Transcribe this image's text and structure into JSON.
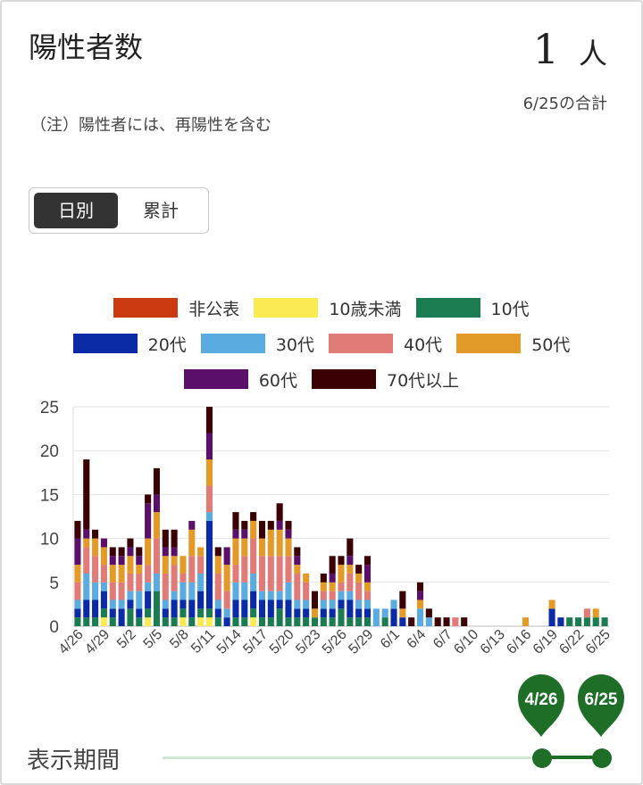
{
  "header": {
    "title": "陽性者数",
    "total_value": "1",
    "total_unit": "人",
    "total_date": "6/25の合計",
    "note": "（注）陽性者には、再陽性を含む"
  },
  "toggle": {
    "daily_label": "日別",
    "cumulative_label": "累計"
  },
  "slider": {
    "label": "表示期間",
    "start_label": "4/26",
    "end_label": "6/25",
    "accent": "#1e6e27"
  },
  "chart_data": {
    "type": "bar",
    "stacked": true,
    "ylim": [
      0,
      25
    ],
    "yticks": [
      0,
      5,
      10,
      15,
      20,
      25
    ],
    "grid": true,
    "legend_position": "top",
    "x_tick_labels": [
      "4/26",
      "4/29",
      "5/2",
      "5/5",
      "5/8",
      "5/11",
      "5/14",
      "5/17",
      "5/20",
      "5/23",
      "5/26",
      "5/29",
      "6/1",
      "6/4",
      "6/7",
      "6/10",
      "6/13",
      "6/16",
      "6/19",
      "6/22",
      "6/25"
    ],
    "tick_every": 3,
    "categories": [
      "4/26",
      "4/27",
      "4/28",
      "4/29",
      "4/30",
      "5/1",
      "5/2",
      "5/3",
      "5/4",
      "5/5",
      "5/6",
      "5/7",
      "5/8",
      "5/9",
      "5/10",
      "5/11",
      "5/12",
      "5/13",
      "5/14",
      "5/15",
      "5/16",
      "5/17",
      "5/18",
      "5/19",
      "5/20",
      "5/21",
      "5/22",
      "5/23",
      "5/24",
      "5/25",
      "5/26",
      "5/27",
      "5/28",
      "5/29",
      "5/30",
      "5/31",
      "6/1",
      "6/2",
      "6/3",
      "6/4",
      "6/5",
      "6/6",
      "6/7",
      "6/8",
      "6/9",
      "6/10",
      "6/11",
      "6/12",
      "6/13",
      "6/14",
      "6/15",
      "6/16",
      "6/17",
      "6/18",
      "6/19",
      "6/20",
      "6/21",
      "6/22",
      "6/23",
      "6/24",
      "6/25"
    ],
    "series": [
      {
        "name": "非公表",
        "color": "#cc3a12",
        "values": [
          0,
          0,
          0,
          0,
          0,
          0,
          0,
          0,
          0,
          0,
          0,
          0,
          0,
          0,
          0,
          0,
          0,
          0,
          0,
          0,
          0,
          0,
          0,
          0,
          0,
          0,
          0,
          0,
          0,
          0,
          0,
          0,
          0,
          0,
          0,
          0,
          0,
          0,
          0,
          0,
          0,
          0,
          0,
          0,
          0,
          0,
          0,
          0,
          0,
          0,
          0,
          0,
          0,
          0,
          0,
          0,
          0,
          0,
          0,
          0,
          0
        ]
      },
      {
        "name": "10歳未満",
        "color": "#fbeb52",
        "values": [
          0,
          0,
          0,
          1,
          0,
          0,
          0,
          0,
          1,
          0,
          0,
          0,
          1,
          0,
          1,
          1,
          0,
          0,
          0,
          0,
          1,
          0,
          0,
          0,
          0,
          0,
          0,
          0,
          0,
          0,
          0,
          0,
          0,
          0,
          0,
          0,
          0,
          0,
          0,
          0,
          0,
          0,
          0,
          0,
          0,
          0,
          0,
          0,
          0,
          0,
          0,
          0,
          0,
          0,
          0,
          0,
          0,
          0,
          0,
          0,
          0
        ]
      },
      {
        "name": "10代",
        "color": "#1b7c52",
        "values": [
          1,
          1,
          1,
          1,
          1,
          0,
          2,
          1,
          1,
          4,
          1,
          1,
          1,
          1,
          1,
          1,
          1,
          0,
          1,
          1,
          1,
          1,
          1,
          2,
          1,
          1,
          1,
          1,
          1,
          1,
          2,
          1,
          1,
          1,
          0,
          1,
          0,
          0,
          0,
          0,
          0,
          0,
          0,
          0,
          0,
          0,
          0,
          0,
          0,
          0,
          0,
          0,
          0,
          0,
          0,
          0,
          1,
          1,
          1,
          1,
          1
        ]
      },
      {
        "name": "20代",
        "color": "#0a2aa6",
        "values": [
          1,
          2,
          2,
          2,
          1,
          2,
          1,
          1,
          2,
          0,
          1,
          2,
          1,
          2,
          2,
          10,
          1,
          1,
          2,
          2,
          2,
          2,
          2,
          1,
          2,
          1,
          1,
          0,
          1,
          1,
          1,
          2,
          1,
          1,
          0,
          0,
          2,
          1,
          0,
          0,
          0,
          0,
          0,
          0,
          0,
          0,
          0,
          0,
          0,
          0,
          0,
          0,
          0,
          0,
          2,
          1,
          0,
          0,
          0,
          0,
          0
        ]
      },
      {
        "name": "30代",
        "color": "#5aace0",
        "values": [
          1,
          3,
          2,
          1,
          1,
          1,
          1,
          2,
          1,
          2,
          1,
          1,
          2,
          2,
          2,
          1,
          1,
          1,
          2,
          2,
          2,
          1,
          1,
          1,
          2,
          1,
          1,
          0,
          1,
          1,
          1,
          1,
          1,
          1,
          2,
          1,
          1,
          0,
          0,
          2,
          1,
          0,
          0,
          0,
          0,
          0,
          0,
          0,
          0,
          0,
          0,
          0,
          0,
          0,
          0,
          0,
          0,
          0,
          0,
          0,
          0
        ]
      },
      {
        "name": "40代",
        "color": "#e07b78",
        "values": [
          2,
          3,
          3,
          2,
          2,
          2,
          2,
          2,
          2,
          4,
          3,
          3,
          1,
          3,
          2,
          3,
          3,
          2,
          2,
          3,
          4,
          4,
          4,
          4,
          3,
          3,
          2,
          0,
          1,
          1,
          1,
          2,
          2,
          1,
          0,
          0,
          0,
          0,
          0,
          0,
          0,
          0,
          0,
          1,
          0,
          0,
          0,
          0,
          0,
          0,
          0,
          0,
          0,
          0,
          0,
          0,
          0,
          0,
          1,
          0,
          0
        ]
      },
      {
        "name": "50代",
        "color": "#e39a28",
        "values": [
          2,
          1,
          2,
          2,
          2,
          2,
          2,
          1,
          3,
          3,
          2,
          1,
          2,
          3,
          1,
          3,
          2,
          3,
          3,
          2,
          2,
          2,
          3,
          3,
          2,
          1,
          1,
          1,
          1,
          1,
          2,
          1,
          1,
          1,
          0,
          0,
          0,
          1,
          0,
          1,
          0,
          0,
          0,
          0,
          0,
          0,
          0,
          0,
          0,
          0,
          0,
          1,
          0,
          0,
          1,
          0,
          0,
          0,
          0,
          1,
          0
        ]
      },
      {
        "name": "60代",
        "color": "#5a0f6b",
        "values": [
          3,
          1,
          0,
          1,
          1,
          1,
          1,
          1,
          4,
          2,
          1,
          1,
          0,
          1,
          0,
          3,
          0,
          2,
          1,
          1,
          0,
          0,
          0,
          1,
          1,
          1,
          0,
          0,
          0,
          1,
          0,
          1,
          0,
          2,
          0,
          0,
          0,
          0,
          0,
          1,
          0,
          0,
          0,
          0,
          0,
          0,
          0,
          0,
          0,
          0,
          0,
          0,
          0,
          0,
          0,
          0,
          0,
          0,
          0,
          0,
          0
        ]
      },
      {
        "name": "70代以上",
        "color": "#3a0004",
        "values": [
          2,
          8,
          1,
          0,
          1,
          1,
          1,
          1,
          1,
          3,
          2,
          2,
          0,
          0,
          0,
          3,
          1,
          0,
          2,
          1,
          1,
          2,
          1,
          2,
          1,
          1,
          0,
          2,
          1,
          2,
          1,
          2,
          1,
          1,
          0,
          0,
          0,
          2,
          1,
          1,
          1,
          1,
          1,
          0,
          1,
          0,
          0,
          0,
          0,
          0,
          0,
          0,
          0,
          0,
          0,
          0,
          0,
          0,
          0,
          0,
          0
        ]
      }
    ]
  }
}
